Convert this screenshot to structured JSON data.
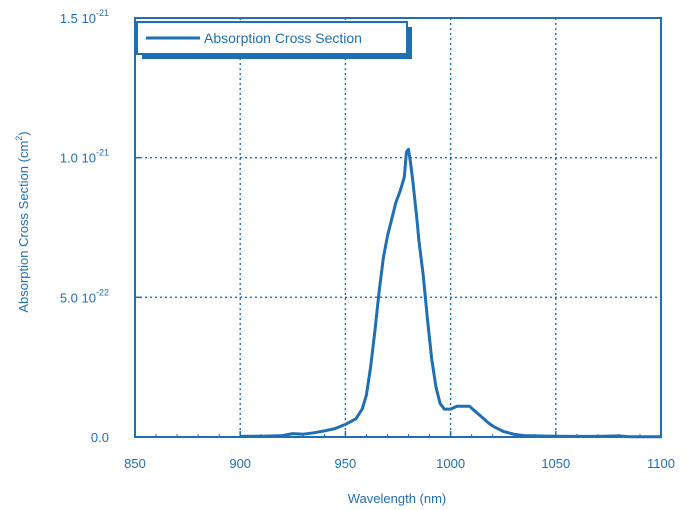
{
  "chart_data": {
    "type": "line",
    "xlabel": "Wavelength (nm)",
    "ylabel": "Absorption Cross Section (cm",
    "ylabel_sup": "2",
    "ylabel_end": ")",
    "xlim": [
      850,
      1100
    ],
    "ylim": [
      0,
      1.5e-21
    ],
    "x_ticks": [
      850,
      900,
      950,
      1000,
      1050,
      1100
    ],
    "x_tick_labels": [
      "850",
      "900",
      "950",
      "1000",
      "1050",
      "1100"
    ],
    "y_ticks": [
      {
        "value": 0,
        "mantissa": "0.0",
        "exponent": ""
      },
      {
        "value": 5e-22,
        "mantissa": "5.0 10",
        "exponent": "-22"
      },
      {
        "value": 1e-21,
        "mantissa": "1.0 10",
        "exponent": "-21"
      },
      {
        "value": 1.5e-21,
        "mantissa": "1.5 10",
        "exponent": "-21"
      }
    ],
    "grid": "dotted",
    "legend_position": "top-left",
    "series": [
      {
        "name": "Absorption Cross Section",
        "color": "#1f6fb5",
        "points": [
          [
            900,
            2e-24
          ],
          [
            910,
            3e-24
          ],
          [
            920,
            5e-24
          ],
          [
            925,
            1.2e-23
          ],
          [
            930,
            1e-23
          ],
          [
            935,
            1.5e-23
          ],
          [
            940,
            2.2e-23
          ],
          [
            945,
            3e-23
          ],
          [
            950,
            4.5e-23
          ],
          [
            955,
            6.5e-23
          ],
          [
            958,
            1e-22
          ],
          [
            960,
            1.5e-22
          ],
          [
            962,
            2.5e-22
          ],
          [
            964,
            3.8e-22
          ],
          [
            966,
            5.2e-22
          ],
          [
            968,
            6.4e-22
          ],
          [
            970,
            7.2e-22
          ],
          [
            972,
            7.8e-22
          ],
          [
            974,
            8.4e-22
          ],
          [
            976,
            8.8e-22
          ],
          [
            978,
            9.3e-22
          ],
          [
            979,
            1.02e-21
          ],
          [
            980,
            1.03e-21
          ],
          [
            981,
            9.8e-22
          ],
          [
            982,
            9.2e-22
          ],
          [
            983,
            8.5e-22
          ],
          [
            984,
            7.8e-22
          ],
          [
            985,
            7e-22
          ],
          [
            987,
            5.8e-22
          ],
          [
            989,
            4.2e-22
          ],
          [
            991,
            2.8e-22
          ],
          [
            993,
            1.8e-22
          ],
          [
            995,
            1.2e-22
          ],
          [
            997,
            1e-22
          ],
          [
            1000,
            1e-22
          ],
          [
            1003,
            1.1e-22
          ],
          [
            1006,
            1.1e-22
          ],
          [
            1009,
            1.1e-22
          ],
          [
            1012,
            9e-23
          ],
          [
            1015,
            7e-23
          ],
          [
            1018,
            5e-23
          ],
          [
            1021,
            3.5e-23
          ],
          [
            1025,
            2e-23
          ],
          [
            1030,
            1e-23
          ],
          [
            1035,
            5e-24
          ],
          [
            1040,
            4e-24
          ],
          [
            1050,
            3e-24
          ],
          [
            1060,
            2e-24
          ],
          [
            1070,
            2e-24
          ],
          [
            1080,
            4e-24
          ],
          [
            1085,
            1e-24
          ],
          [
            1100,
            1e-24
          ]
        ]
      }
    ]
  }
}
